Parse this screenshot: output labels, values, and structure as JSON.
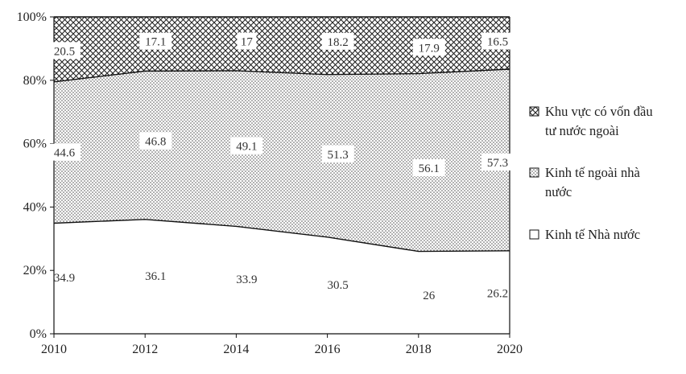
{
  "chart_data": {
    "type": "area",
    "subtype": "100% stacked area",
    "x": [
      2010,
      2012,
      2014,
      2016,
      2018,
      2020
    ],
    "series": [
      {
        "name": "Kinh tế Nhà nước",
        "values": [
          34.9,
          36.1,
          33.9,
          30.5,
          26,
          26.2
        ],
        "labels": [
          "34.9",
          "36.1",
          "33.9",
          "30.5",
          "26",
          "26.2"
        ],
        "pattern": "blank"
      },
      {
        "name": "Kinh tế ngoài nhà nước",
        "values": [
          44.6,
          46.8,
          49.1,
          51.3,
          56.1,
          57.3
        ],
        "labels": [
          "44.6",
          "46.8",
          "49.1",
          "51.3",
          "56.1",
          "57.3"
        ],
        "pattern": "dots"
      },
      {
        "name": "Khu vực có vốn đầu tư nước ngoài",
        "values": [
          20.5,
          17.1,
          17,
          18.2,
          17.9,
          16.5
        ],
        "labels": [
          "20.5",
          "17.1",
          "17",
          "18.2",
          "17.9",
          "16.5"
        ],
        "pattern": "crosshatch"
      }
    ],
    "legend": [
      {
        "lines": [
          "Khu vực có vốn đầu",
          "tư nước ngoài"
        ],
        "series": 2
      },
      {
        "lines": [
          "Kinh tế ngoài nhà",
          "nước"
        ],
        "series": 1
      },
      {
        "lines": [
          "Kinh tế Nhà nước"
        ],
        "series": 0
      }
    ],
    "y_ticks": [
      "0%",
      "20%",
      "40%",
      "60%",
      "80%",
      "100%"
    ],
    "x_ticks": [
      "2010",
      "2012",
      "2014",
      "2016",
      "2018",
      "2020"
    ],
    "ylim": [
      0,
      100
    ],
    "grid": false,
    "legend_position": "right",
    "title": "",
    "xlabel": "",
    "ylabel": ""
  }
}
